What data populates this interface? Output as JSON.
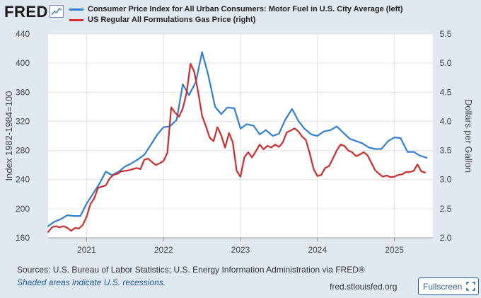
{
  "app": {
    "logo_text": "FRED",
    "logo_icon": "line-graph-icon",
    "sources_text": "Sources: U.S. Bureau of Labor Statistics; U.S. Energy Information Administration via FRED®",
    "recession_note": "Shaded areas indicate U.S. recessions.",
    "site_url": "fred.stlouisfed.org",
    "fullscreen_label": "Fullscreen",
    "fullscreen_icon": "expand-icon"
  },
  "chart_data": {
    "type": "line",
    "title": "",
    "xlabel": "",
    "ylabel": "Index 1982-1984=100",
    "ylabel_right": "Dollars per Gallon",
    "x_ticks": [
      "2021",
      "2022",
      "2023",
      "2024",
      "2025"
    ],
    "y_ticks_left": [
      160,
      200,
      240,
      280,
      320,
      360,
      400,
      440
    ],
    "y_ticks_right": [
      "2.0",
      "2.5",
      "3.0",
      "3.5",
      "4.0",
      "4.5",
      "5.0",
      "5.5"
    ],
    "ylim_left": [
      160,
      440
    ],
    "ylim_right": [
      2.0,
      5.5
    ],
    "xlim": [
      2020.5,
      2025.5
    ],
    "grid": true,
    "legend_position": "top",
    "colors": {
      "cpi": "#2f7fd6",
      "gas": "#d22b2b",
      "background": "#e1e9f0",
      "plot_bg": "#ffffff",
      "grid": "#e0e0e0"
    },
    "series": [
      {
        "name": "Consumer Price Index for All Urban Consumers: Motor Fuel in U.S. City Average (left)",
        "axis": "left",
        "x": [
          2020.5,
          2020.58,
          2020.67,
          2020.75,
          2020.83,
          2020.92,
          2021.0,
          2021.08,
          2021.17,
          2021.25,
          2021.33,
          2021.42,
          2021.5,
          2021.58,
          2021.67,
          2021.75,
          2021.83,
          2021.92,
          2022.0,
          2022.08,
          2022.17,
          2022.25,
          2022.33,
          2022.42,
          2022.5,
          2022.58,
          2022.67,
          2022.75,
          2022.83,
          2022.92,
          2023.0,
          2023.08,
          2023.17,
          2023.25,
          2023.33,
          2023.42,
          2023.5,
          2023.58,
          2023.67,
          2023.75,
          2023.83,
          2023.92,
          2024.0,
          2024.08,
          2024.17,
          2024.25,
          2024.33,
          2024.42,
          2024.5,
          2024.58,
          2024.67,
          2024.75,
          2024.83,
          2024.92,
          2025.0,
          2025.08,
          2025.17,
          2025.25,
          2025.33,
          2025.42
        ],
        "values": [
          176,
          182,
          186,
          191,
          190,
          190,
          207,
          220,
          235,
          251,
          246,
          251,
          258,
          262,
          268,
          274,
          287,
          302,
          312,
          313,
          322,
          371,
          356,
          374,
          415,
          384,
          340,
          330,
          339,
          338,
          310,
          316,
          314,
          302,
          308,
          300,
          303,
          322,
          337,
          321,
          310,
          302,
          300,
          306,
          308,
          313,
          305,
          296,
          293,
          290,
          284,
          282,
          282,
          293,
          298,
          297,
          278,
          278,
          273,
          270
        ]
      },
      {
        "name": "US Regular All Formulations Gas Price (right)",
        "axis": "right",
        "x": [
          2020.5,
          2020.55,
          2020.6,
          2020.65,
          2020.7,
          2020.75,
          2020.8,
          2020.85,
          2020.9,
          2020.95,
          2021.0,
          2021.05,
          2021.1,
          2021.15,
          2021.2,
          2021.25,
          2021.3,
          2021.35,
          2021.4,
          2021.45,
          2021.5,
          2021.55,
          2021.6,
          2021.65,
          2021.7,
          2021.75,
          2021.8,
          2021.85,
          2021.9,
          2021.95,
          2022.0,
          2022.05,
          2022.1,
          2022.15,
          2022.2,
          2022.25,
          2022.3,
          2022.35,
          2022.4,
          2022.45,
          2022.5,
          2022.55,
          2022.6,
          2022.65,
          2022.7,
          2022.75,
          2022.8,
          2022.85,
          2022.9,
          2022.95,
          2023.0,
          2023.05,
          2023.1,
          2023.15,
          2023.2,
          2023.25,
          2023.3,
          2023.35,
          2023.4,
          2023.45,
          2023.5,
          2023.55,
          2023.6,
          2023.65,
          2023.7,
          2023.75,
          2023.8,
          2023.85,
          2023.9,
          2023.95,
          2024.0,
          2024.05,
          2024.1,
          2024.15,
          2024.2,
          2024.25,
          2024.3,
          2024.35,
          2024.4,
          2024.45,
          2024.5,
          2024.55,
          2024.6,
          2024.65,
          2024.7,
          2024.75,
          2024.8,
          2024.85,
          2024.9,
          2024.95,
          2025.0,
          2025.05,
          2025.1,
          2025.15,
          2025.2,
          2025.25,
          2025.3,
          2025.35,
          2025.4
        ],
        "values": [
          2.1,
          2.18,
          2.2,
          2.18,
          2.2,
          2.17,
          2.12,
          2.17,
          2.16,
          2.22,
          2.36,
          2.58,
          2.68,
          2.86,
          2.88,
          2.9,
          3.02,
          3.08,
          3.1,
          3.14,
          3.15,
          3.16,
          3.18,
          3.2,
          3.18,
          3.34,
          3.36,
          3.3,
          3.25,
          3.28,
          3.32,
          3.46,
          4.24,
          4.15,
          4.08,
          4.22,
          4.49,
          4.99,
          4.85,
          4.5,
          4.1,
          3.92,
          3.72,
          3.66,
          3.9,
          3.76,
          3.55,
          3.8,
          3.64,
          3.15,
          3.05,
          3.38,
          3.47,
          3.38,
          3.49,
          3.6,
          3.52,
          3.58,
          3.55,
          3.6,
          3.56,
          3.64,
          3.81,
          3.84,
          3.88,
          3.83,
          3.74,
          3.68,
          3.45,
          3.18,
          3.06,
          3.08,
          3.2,
          3.23,
          3.36,
          3.5,
          3.6,
          3.58,
          3.5,
          3.47,
          3.4,
          3.43,
          3.47,
          3.42,
          3.29,
          3.16,
          3.1,
          3.05,
          3.07,
          3.04,
          3.05,
          3.08,
          3.09,
          3.13,
          3.13,
          3.15,
          3.26,
          3.14,
          3.12
        ]
      }
    ]
  }
}
